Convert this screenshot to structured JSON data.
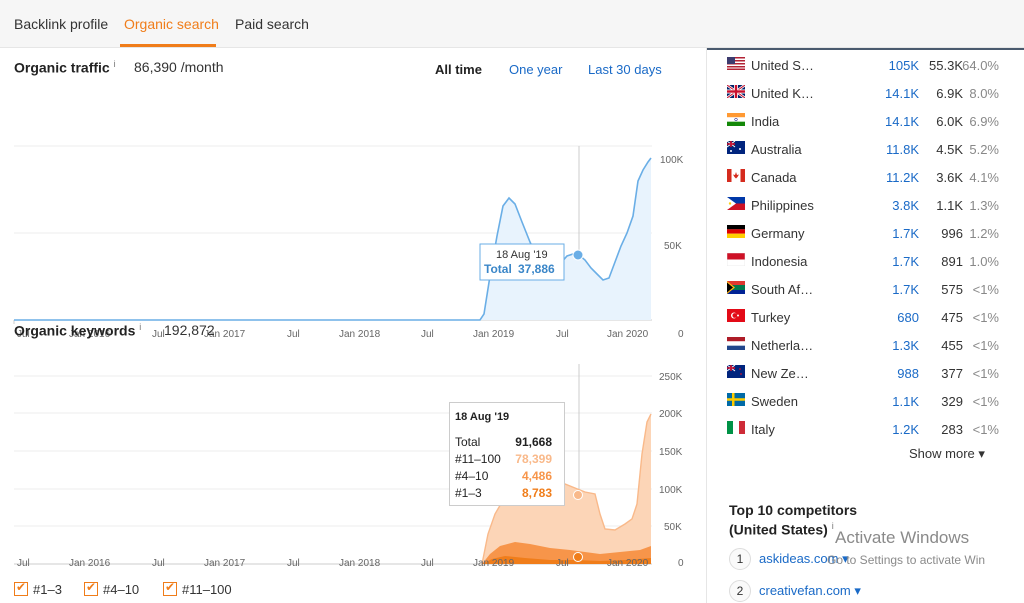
{
  "tabs": [
    {
      "label": "Backlink profile"
    },
    {
      "label": "Organic search"
    },
    {
      "label": "Paid search"
    }
  ],
  "traffic": {
    "title": "Organic traffic",
    "info": "i",
    "value": "86,390 /month",
    "ranges": [
      "All time",
      "One year",
      "Last 30 days"
    ],
    "y_ticks": [
      "100K",
      "50K",
      "0"
    ],
    "x_ticks": [
      "Jul",
      "Jan 2016",
      "Jul",
      "Jan 2017",
      "Jul",
      "Jan 2018",
      "Jul",
      "Jan 2019",
      "Jul",
      "Jan 2020"
    ],
    "tooltip": {
      "date": "18 Aug '19",
      "total_label": "Total",
      "total_value": "37,886"
    }
  },
  "keywords": {
    "title": "Organic keywords",
    "info": "i",
    "value": "192,872",
    "y_ticks": [
      "250K",
      "200K",
      "150K",
      "100K",
      "50K",
      "0"
    ],
    "x_ticks": [
      "Jul",
      "Jan 2016",
      "Jul",
      "Jan 2017",
      "Jul",
      "Jan 2018",
      "Jul",
      "Jan 2019",
      "Jul",
      "Jan 2020"
    ],
    "tooltip": {
      "date": "18 Aug '19",
      "rows": [
        {
          "label": "Total",
          "value": "91,668",
          "color": "#222222"
        },
        {
          "label": "#11–100",
          "value": "78,399",
          "color": "#f9b98a"
        },
        {
          "label": "#4–10",
          "value": "4,486",
          "color": "#f7954a"
        },
        {
          "label": "#1–3",
          "value": "8,783",
          "color": "#f07d1a"
        }
      ]
    },
    "checkboxes": [
      {
        "label": "#1–3"
      },
      {
        "label": "#4–10"
      },
      {
        "label": "#11–100"
      }
    ]
  },
  "countries": [
    {
      "name": "United S…",
      "traffic": "105K",
      "keywords": "55.3K",
      "pct": "64.0%",
      "flag": "us"
    },
    {
      "name": "United K…",
      "traffic": "14.1K",
      "keywords": "6.9K",
      "pct": "8.0%",
      "flag": "uk"
    },
    {
      "name": "India",
      "traffic": "14.1K",
      "keywords": "6.0K",
      "pct": "6.9%",
      "flag": "in"
    },
    {
      "name": "Australia",
      "traffic": "11.8K",
      "keywords": "4.5K",
      "pct": "5.2%",
      "flag": "au"
    },
    {
      "name": "Canada",
      "traffic": "11.2K",
      "keywords": "3.6K",
      "pct": "4.1%",
      "flag": "ca"
    },
    {
      "name": "Philippines",
      "traffic": "3.8K",
      "keywords": "1.1K",
      "pct": "1.3%",
      "flag": "ph"
    },
    {
      "name": "Germany",
      "traffic": "1.7K",
      "keywords": "996",
      "pct": "1.2%",
      "flag": "de"
    },
    {
      "name": "Indonesia",
      "traffic": "1.7K",
      "keywords": "891",
      "pct": "1.0%",
      "flag": "id"
    },
    {
      "name": "South Af…",
      "traffic": "1.7K",
      "keywords": "575",
      "pct": "<1%",
      "flag": "za"
    },
    {
      "name": "Turkey",
      "traffic": "680",
      "keywords": "475",
      "pct": "<1%",
      "flag": "tr"
    },
    {
      "name": "Netherla…",
      "traffic": "1.3K",
      "keywords": "455",
      "pct": "<1%",
      "flag": "nl"
    },
    {
      "name": "New Ze…",
      "traffic": "988",
      "keywords": "377",
      "pct": "<1%",
      "flag": "nz"
    },
    {
      "name": "Sweden",
      "traffic": "1.1K",
      "keywords": "329",
      "pct": "<1%",
      "flag": "se"
    },
    {
      "name": "Italy",
      "traffic": "1.2K",
      "keywords": "283",
      "pct": "<1%",
      "flag": "it"
    }
  ],
  "show_more": "Show more ▾",
  "competitors": {
    "title_line1": "Top 10 competitors",
    "title_line2": "(United States)",
    "info": "i",
    "items": [
      {
        "num": "1",
        "domain": "askideas.com ▾"
      },
      {
        "num": "2",
        "domain": "creativefan.com ▾"
      }
    ]
  },
  "watermark": {
    "line1": "Activate Windows",
    "line2": "Go to Settings to activate Win"
  },
  "colors": {
    "accent": "#f07d1a",
    "link": "#1a6ac7",
    "traffic_line": "#6aaee6",
    "traffic_fill": "#e8f3fd"
  }
}
